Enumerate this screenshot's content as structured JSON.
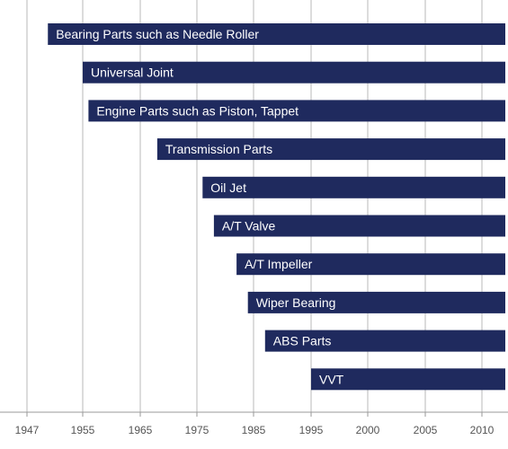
{
  "chart_data": {
    "type": "bar",
    "orientation": "horizontal",
    "title": "",
    "xlabel": "",
    "ylabel": "",
    "xlim": [
      1947,
      2012
    ],
    "grid": true,
    "bar_color": "#1f2a5e",
    "grid_color": "#b8b8b8",
    "x_ticks": [
      "1947",
      "1955",
      "1965",
      "1975",
      "1985",
      "1995",
      "2000",
      "2005",
      "2010"
    ],
    "categories": [
      "Bearing Parts such as Needle Roller",
      "Universal Joint",
      "Engine Parts such as Piston, Tappet",
      "Transmission Parts",
      "Oil Jet",
      "A/T Valve",
      "A/T Impeller",
      "Wiper Bearing",
      "ABS Parts",
      "VVT"
    ],
    "series": [
      {
        "start": [
          1950,
          1955,
          1956,
          1968,
          1976,
          1978,
          1982,
          1984,
          1987,
          1995
        ],
        "end": [
          2012,
          2012,
          2012,
          2012,
          2012,
          2012,
          2012,
          2012,
          2012,
          2012
        ]
      }
    ]
  }
}
